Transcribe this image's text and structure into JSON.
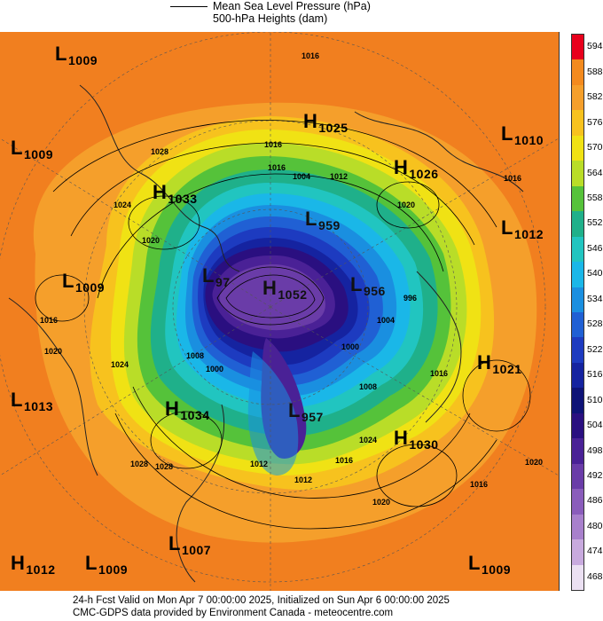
{
  "header": {
    "legend_line_label": "Mean Sea Level Pressure (hPa)",
    "subtitle": "500-hPa Heights (dam)"
  },
  "footer": {
    "line1": "24-h Fcst Valid on Mon Apr  7 00:00:00 2025, Initialized on Sun Apr  6 00:00:00 2025",
    "line2": "CMC-GDPS data provided by Environment Canada - meteocentre.com"
  },
  "colorbar": {
    "labels": [
      "594",
      "588",
      "582",
      "576",
      "570",
      "564",
      "558",
      "552",
      "546",
      "540",
      "534",
      "528",
      "522",
      "516",
      "510",
      "504",
      "498",
      "492",
      "486",
      "480",
      "474",
      "468"
    ],
    "colors": [
      "#e8001c",
      "#f38a1e",
      "#f59f2b",
      "#f7c21e",
      "#f0e214",
      "#b9dd28",
      "#55c23a",
      "#1fb08a",
      "#21c5c0",
      "#1ab7e8",
      "#1a8fe0",
      "#2060d4",
      "#1d3bc0",
      "#1523a0",
      "#0e1377",
      "#2a0f80",
      "#4a2196",
      "#6a3ca8",
      "#8a5cbb",
      "#a880cc",
      "#c8aade",
      "#ebe0f2"
    ]
  },
  "systems": [
    {
      "type": "L",
      "value": "1009"
    },
    {
      "type": "L",
      "value": "1009"
    },
    {
      "type": "H",
      "value": "1033"
    },
    {
      "type": "H",
      "value": "1025"
    },
    {
      "type": "H",
      "value": "1026"
    },
    {
      "type": "L",
      "value": "1010"
    },
    {
      "type": "L",
      "value": "1012"
    },
    {
      "type": "L",
      "value": "1009"
    },
    {
      "type": "L",
      "value": "959"
    },
    {
      "type": "L",
      "value": "97"
    },
    {
      "type": "H",
      "value": "1052"
    },
    {
      "type": "L",
      "value": "956"
    },
    {
      "type": "H",
      "value": "1021"
    },
    {
      "type": "L",
      "value": "1013"
    },
    {
      "type": "H",
      "value": "1034"
    },
    {
      "type": "L",
      "value": "957"
    },
    {
      "type": "H",
      "value": "1030"
    },
    {
      "type": "H",
      "value": "1012"
    },
    {
      "type": "L",
      "value": "1009"
    },
    {
      "type": "L",
      "value": "1007"
    },
    {
      "type": "L",
      "value": "1009"
    }
  ],
  "isobar_labels": [
    "1016",
    "1028",
    "1024",
    "1020",
    "1016",
    "1020",
    "1016",
    "1016",
    "1004",
    "1012",
    "1020",
    "1016",
    "1024",
    "1028",
    "1012",
    "1008",
    "1004",
    "1000",
    "996",
    "1012",
    "1016",
    "1020",
    "1024",
    "1008",
    "1016",
    "1020",
    "1016",
    "1000",
    "1028"
  ]
}
